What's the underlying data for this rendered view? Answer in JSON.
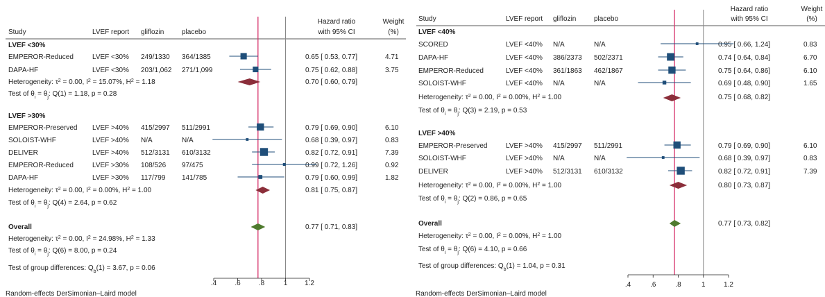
{
  "colors": {
    "square": "#1f4e79",
    "subgroup_diamond": "#8b2e3a",
    "overall_diamond": "#4f7a2e",
    "null_line": "#888888",
    "overall_line": "#d6336c",
    "text": "#222222"
  },
  "chart_data": [
    {
      "type": "forest",
      "xlabel": "",
      "xticks": [
        ".4",
        ".6",
        ".8",
        "1",
        "1.2"
      ],
      "xlim": [
        0.4,
        1.2
      ],
      "headers": {
        "study": "Study",
        "lvef": "LVEF report",
        "gliflozin": "gliflozin",
        "placebo": "placebo",
        "hr_line1": "Hazard ratio",
        "hr_line2": "with 95% CI",
        "w_line1": "Weight",
        "w_line2": "(%)"
      },
      "groups": [
        {
          "title": "LVEF <30%",
          "studies": [
            {
              "study": "EMPEROR-Reduced",
              "lvef": "LVEF <30%",
              "gliflozin": "249/1330",
              "placebo": "364/1385",
              "hr": 0.65,
              "lo": 0.53,
              "hi": 0.77,
              "ci_text": "0.65 [ 0.53,  0.77]",
              "weight": "4.71"
            },
            {
              "study": "DAPA-HF",
              "lvef": "LVEF <30%",
              "gliflozin": "203/1,062",
              "placebo": "271/1,099",
              "hr": 0.75,
              "lo": 0.62,
              "hi": 0.88,
              "ci_text": "0.75 [ 0.62,  0.88]",
              "weight": "3.75"
            }
          ],
          "summary": {
            "hr": 0.7,
            "lo": 0.6,
            "hi": 0.79,
            "ci_text": "0.70 [ 0.60,  0.79]"
          },
          "heterogeneity": "Heterogeneity: τ² = 0.00, I² = 15.07%, H² = 1.18",
          "test": "Test of θᵢ = θⱼ: Q(1) = 1.18, p = 0.28"
        },
        {
          "title": "LVEF >30%",
          "studies": [
            {
              "study": "EMPEROR-Preserved",
              "lvef": "LVEF >40%",
              "gliflozin": "415/2997",
              "placebo": "511/2991",
              "hr": 0.79,
              "lo": 0.69,
              "hi": 0.9,
              "ci_text": "0.79 [ 0.69,  0.90]",
              "weight": "6.10"
            },
            {
              "study": "SOLOIST-WHF",
              "lvef": "LVEF >40%",
              "gliflozin": "N/A",
              "placebo": "N/A",
              "hr": 0.68,
              "lo": 0.39,
              "hi": 0.97,
              "ci_text": "0.68 [ 0.39,  0.97]",
              "weight": "0.83"
            },
            {
              "study": "DELIVER",
              "lvef": "LVEF >40%",
              "gliflozin": "512/3131",
              "placebo": "610/3132",
              "hr": 0.82,
              "lo": 0.72,
              "hi": 0.91,
              "ci_text": "0.82 [ 0.72,  0.91]",
              "weight": "7.39"
            },
            {
              "study": "EMPEROR-Reduced",
              "lvef": "LVEF >30%",
              "gliflozin": "108/526",
              "placebo": "97/475",
              "hr": 0.99,
              "lo": 0.72,
              "hi": 1.26,
              "ci_text": "0.99 [ 0.72,  1.26]",
              "weight": "0.92"
            },
            {
              "study": "DAPA-HF",
              "lvef": "LVEF >30%",
              "gliflozin": "117/799",
              "placebo": "141/785",
              "hr": 0.79,
              "lo": 0.6,
              "hi": 0.99,
              "ci_text": "0.79 [ 0.60,  0.99]",
              "weight": "1.82"
            }
          ],
          "summary": {
            "hr": 0.81,
            "lo": 0.75,
            "hi": 0.87,
            "ci_text": "0.81 [ 0.75,  0.87]"
          },
          "heterogeneity": "Heterogeneity: τ² = 0.00, I² = 0.00%, H² = 1.00",
          "test": "Test of θᵢ = θⱼ: Q(4) = 2.64, p = 0.62"
        }
      ],
      "overall": {
        "title": "Overall",
        "hr": 0.77,
        "lo": 0.71,
        "hi": 0.83,
        "ci_text": "0.77 [ 0.71,  0.83]",
        "heterogeneity": "Heterogeneity: τ² = 0.00, I² = 24.98%, H² = 1.33",
        "test": "Test of θᵢ = θⱼ: Q(6) = 8.00, p = 0.24"
      },
      "group_diff": "Test of group differences: Q_b(1) = 3.67, p = 0.06",
      "footer": "Random-effects DerSimonian–Laird model"
    },
    {
      "type": "forest",
      "xlabel": "",
      "xticks": [
        ".4",
        ".6",
        ".8",
        "1",
        "1.2"
      ],
      "xlim": [
        0.4,
        1.2
      ],
      "headers": {
        "study": "Study",
        "lvef": "LVEF report",
        "gliflozin": "gliflozin",
        "placebo": "placebo",
        "hr_line1": "Hazard ratio",
        "hr_line2": "with 95% CI",
        "w_line1": "Weight",
        "w_line2": "(%)"
      },
      "groups": [
        {
          "title": "LVEF <40%",
          "studies": [
            {
              "study": "SCORED",
              "lvef": "LVEF <40%",
              "gliflozin": "N/A",
              "placebo": "N/A",
              "hr": 0.95,
              "lo": 0.66,
              "hi": 1.24,
              "ci_text": "0.95 [ 0.66,  1.24]",
              "weight": "0.83"
            },
            {
              "study": "DAPA-HF",
              "lvef": "LVEF <40%",
              "gliflozin": "386/2373",
              "placebo": "502/2371",
              "hr": 0.74,
              "lo": 0.64,
              "hi": 0.84,
              "ci_text": "0.74 [ 0.64,  0.84]",
              "weight": "6.70"
            },
            {
              "study": "EMPEROR-Reduced",
              "lvef": "LVEF <40%",
              "gliflozin": "361/1863",
              "placebo": "462/1867",
              "hr": 0.75,
              "lo": 0.64,
              "hi": 0.86,
              "ci_text": "0.75 [ 0.64,  0.86]",
              "weight": "6.10"
            },
            {
              "study": "SOLOIST-WHF",
              "lvef": "LVEF <40%",
              "gliflozin": "N/A",
              "placebo": "N/A",
              "hr": 0.69,
              "lo": 0.48,
              "hi": 0.9,
              "ci_text": "0.69 [ 0.48,  0.90]",
              "weight": "1.65"
            }
          ],
          "summary": {
            "hr": 0.75,
            "lo": 0.68,
            "hi": 0.82,
            "ci_text": "0.75 [ 0.68,  0.82]"
          },
          "heterogeneity": "Heterogeneity: τ² = 0.00, I² = 0.00%, H² = 1.00",
          "test": "Test of θᵢ = θⱼ: Q(3) = 2.19, p = 0.53"
        },
        {
          "title": "LVEF >40%",
          "studies": [
            {
              "study": "EMPEROR-Preserved",
              "lvef": "LVEF >40%",
              "gliflozin": "415/2997",
              "placebo": "511/2991",
              "hr": 0.79,
              "lo": 0.69,
              "hi": 0.9,
              "ci_text": "0.79 [ 0.69,  0.90]",
              "weight": "6.10"
            },
            {
              "study": "SOLOIST-WHF",
              "lvef": "LVEF >40%",
              "gliflozin": "N/A",
              "placebo": "N/A",
              "hr": 0.68,
              "lo": 0.39,
              "hi": 0.97,
              "ci_text": "0.68 [ 0.39,  0.97]",
              "weight": "0.83"
            },
            {
              "study": "DELIVER",
              "lvef": "LVEF >40%",
              "gliflozin": "512/3131",
              "placebo": "610/3132",
              "hr": 0.82,
              "lo": 0.72,
              "hi": 0.91,
              "ci_text": "0.82 [ 0.72,  0.91]",
              "weight": "7.39"
            }
          ],
          "summary": {
            "hr": 0.8,
            "lo": 0.73,
            "hi": 0.87,
            "ci_text": "0.80 [ 0.73,  0.87]"
          },
          "heterogeneity": "Heterogeneity: τ² = 0.00, I² = 0.00%, H² = 1.00",
          "test": "Test of θᵢ = θⱼ: Q(2) = 0.86, p = 0.65"
        }
      ],
      "overall": {
        "title": "Overall",
        "hr": 0.77,
        "lo": 0.73,
        "hi": 0.82,
        "ci_text": "0.77 [ 0.73,  0.82]",
        "heterogeneity": "Heterogeneity: τ² = 0.00, I² = 0.00%, H² = 1.00",
        "test": "Test of θᵢ = θⱼ: Q(6) = 4.10, p = 0.66"
      },
      "group_diff": "Test of group differences: Q_b(1) = 1.04, p = 0.31",
      "footer": "Random-effects DerSimonian–Laird model"
    }
  ]
}
